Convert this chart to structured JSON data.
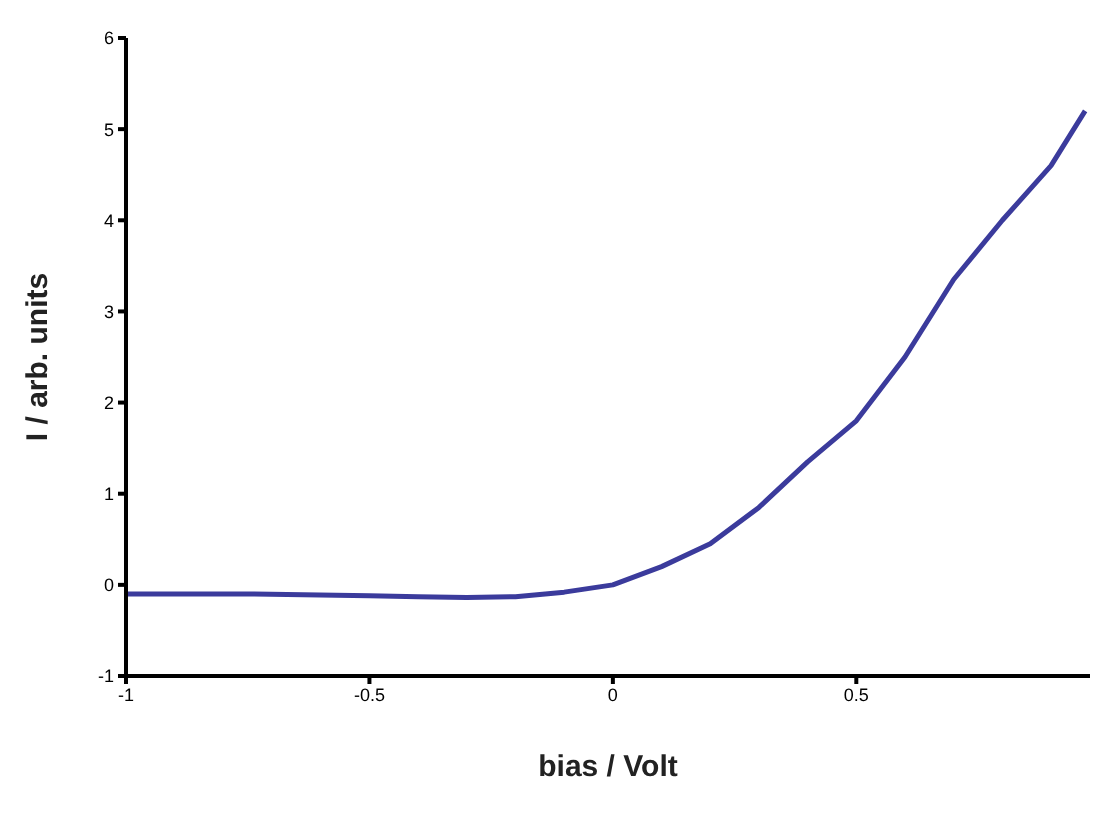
{
  "chart_data": {
    "type": "line",
    "xlabel": "bias / Volt",
    "ylabel": "I / arb. units",
    "xlim": [
      -1,
      0.98
    ],
    "xticks": [
      -1,
      -0.5,
      0,
      0.5
    ],
    "ylim": [
      -1,
      6
    ],
    "yticks": [
      -1,
      0,
      1,
      2,
      3,
      4,
      5,
      6
    ],
    "grid": false,
    "marker": "none",
    "line_style": "solid",
    "series": [
      {
        "color": "#3b3b9c",
        "x": [
          -1,
          -0.75,
          -0.5,
          -0.4,
          -0.3,
          -0.2,
          -0.1,
          0,
          0.1,
          0.2,
          0.3,
          0.4,
          0.5,
          0.6,
          0.7,
          0.8,
          0.9,
          0.97
        ],
        "values": [
          -0.1,
          -0.1,
          -0.12,
          -0.13,
          -0.14,
          -0.13,
          -0.08,
          0,
          0.2,
          0.45,
          0.85,
          1.35,
          1.8,
          2.5,
          3.35,
          4.0,
          4.6,
          5.2
        ]
      }
    ]
  }
}
